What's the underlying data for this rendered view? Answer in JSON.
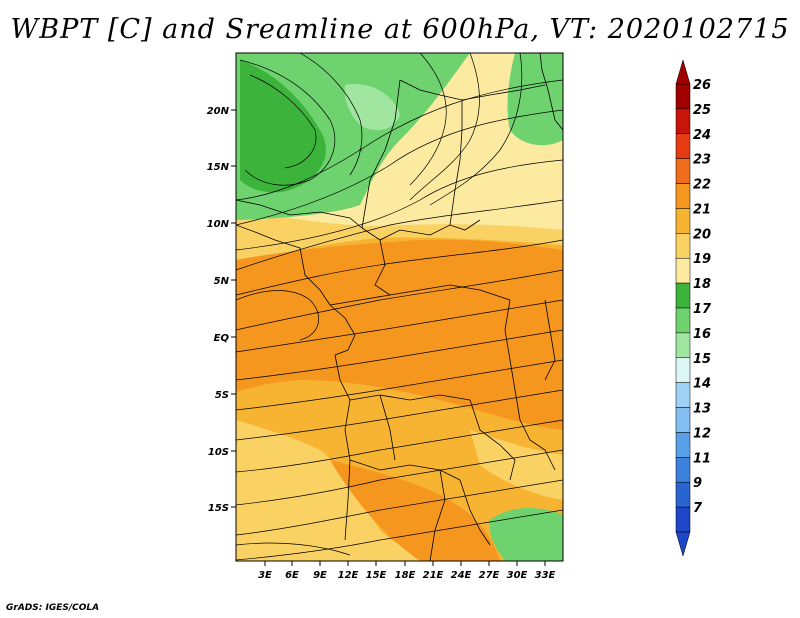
{
  "title": "WBPT [C] and Sreamline at 600hPa, VT: 2020102715",
  "credit": "GrADS: IGES/COLA",
  "map": {
    "lon_ticks": [
      "3E",
      "6E",
      "9E",
      "12E",
      "15E",
      "18E",
      "21E",
      "24E",
      "27E",
      "30E",
      "33E"
    ],
    "lat_ticks": [
      "20N",
      "15N",
      "10N",
      "5N",
      "EQ",
      "5S",
      "10S",
      "15S"
    ]
  },
  "colorbar": {
    "labels": [
      "26",
      "25",
      "24",
      "23",
      "22",
      "21",
      "20",
      "19",
      "18",
      "17",
      "16",
      "15",
      "14",
      "13",
      "12",
      "11",
      "9",
      "7"
    ],
    "colors": [
      "#a00000",
      "#c8140a",
      "#e63c14",
      "#f06e1e",
      "#f5961e",
      "#f7b432",
      "#fad264",
      "#fbeaa0",
      "#3cb43c",
      "#6ed26e",
      "#a0e6a0",
      "#dcf5f5",
      "#a0d2f5",
      "#82bef0",
      "#5aa0e6",
      "#3c82dc",
      "#2864d2",
      "#1e46c8"
    ]
  },
  "colors": {
    "green_dark": "#3cb43c",
    "green_mid": "#6ed26e",
    "green_light": "#a0e6a0",
    "yellow_light": "#fbeaa0",
    "yellow": "#fad264",
    "orange_light": "#f7b432",
    "orange": "#f5961e"
  }
}
